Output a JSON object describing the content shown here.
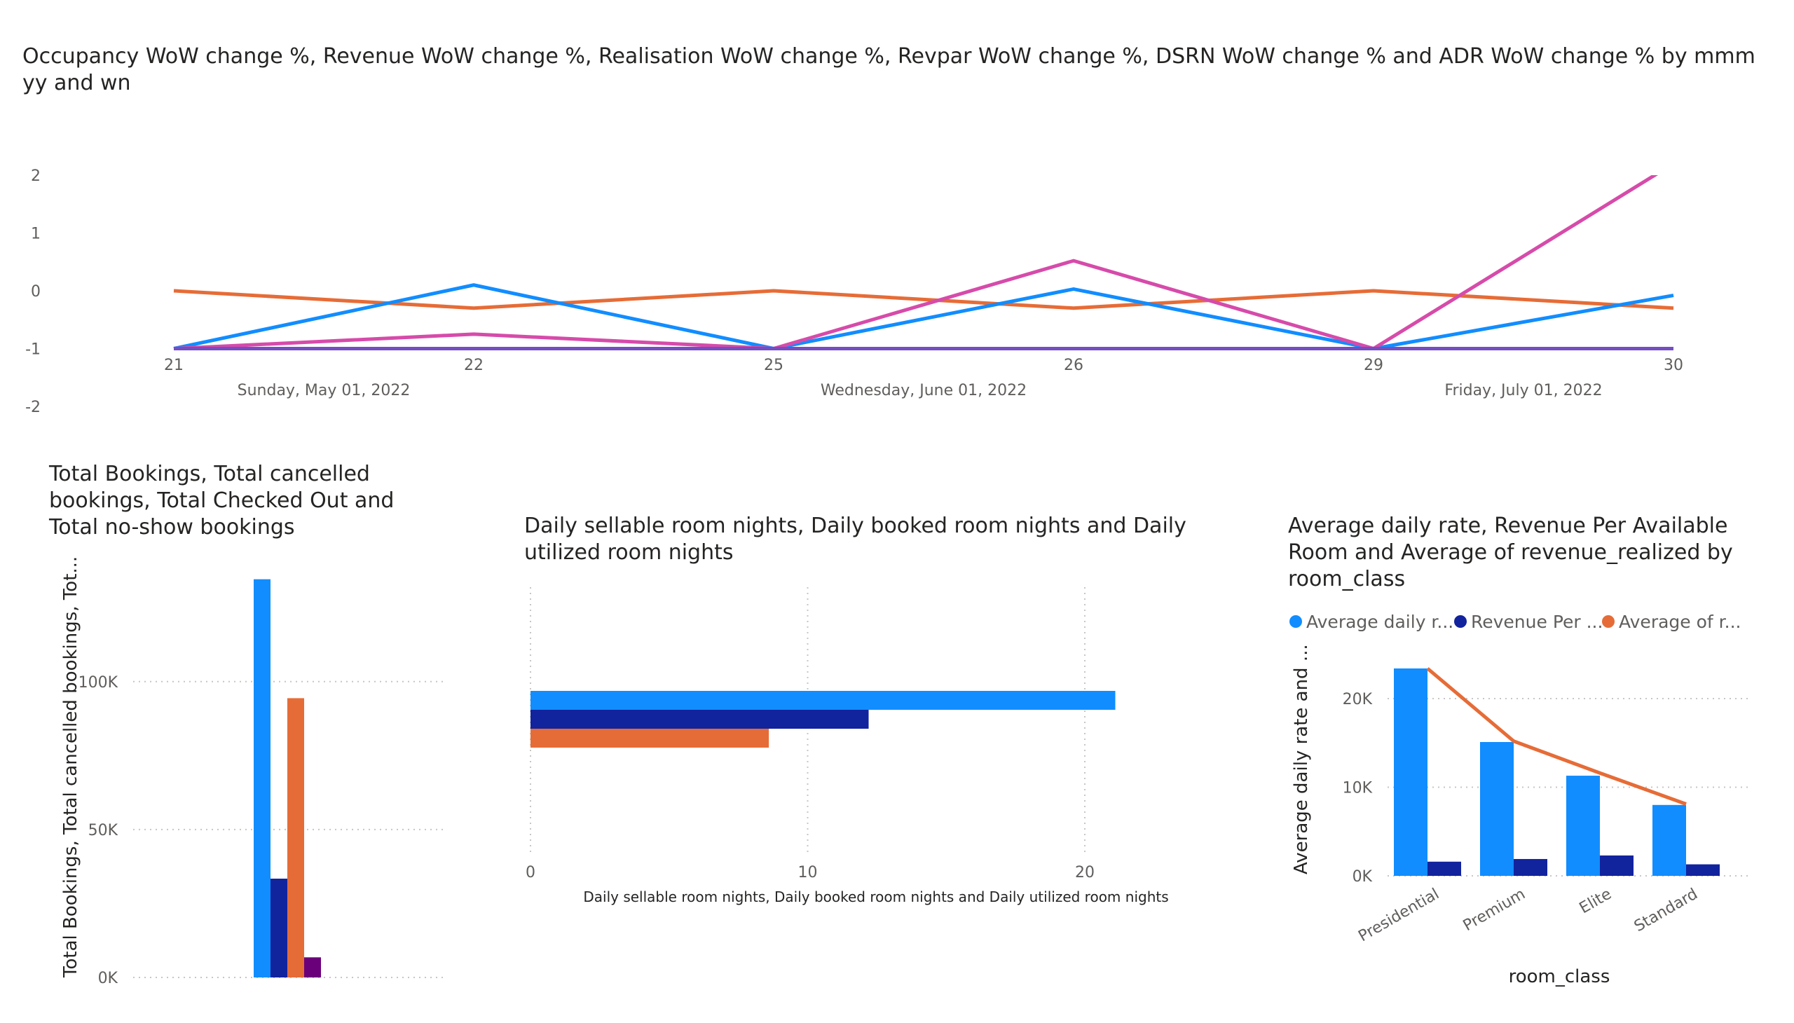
{
  "chart_data": [
    {
      "type": "line",
      "title": "Occupancy WoW change %, Revenue WoW change %, Realisation WoW change %, Revpar WoW change %, DSRN WoW change % and ADR WoW change % by mmm yy and wn",
      "x": [
        "21",
        "22",
        "25",
        "26",
        "29",
        "30"
      ],
      "month_labels": [
        "Sunday, May 01, 2022",
        "Wednesday, June 01, 2022",
        "Friday, July 01, 2022"
      ],
      "yticks": [
        "2",
        "1",
        "0",
        "-1",
        "-2"
      ],
      "ylim": [
        -2,
        2
      ],
      "series": [
        {
          "color": "#E66C37",
          "values": [
            0,
            -0.3,
            0,
            -0.3,
            0,
            -0.3
          ]
        },
        {
          "color": "#118DFF",
          "values": [
            -1,
            0.1,
            -1,
            0.03,
            -1,
            -0.08
          ]
        },
        {
          "color": "#D64BAA",
          "values": [
            -1,
            -0.75,
            -1,
            0.52,
            -1,
            2.2
          ]
        },
        {
          "color": "#744EC2",
          "values": [
            -1,
            -1,
            -1,
            -1,
            -1,
            -1
          ]
        }
      ]
    },
    {
      "type": "bar",
      "title": "Total Bookings, Total cancelled bookings, Total Checked Out and Total no-show bookings",
      "ylabel": "Total Bookings, Total cancelled bookings, Tot...",
      "yticks": [
        "100K",
        "50K",
        "0K"
      ],
      "ytick_values": [
        100000,
        50000,
        0
      ],
      "ylim": [
        0,
        135000
      ],
      "series": [
        {
          "color": "#118DFF",
          "values": [
            134600
          ]
        },
        {
          "color": "#12239E",
          "values": [
            33400
          ]
        },
        {
          "color": "#E66C37",
          "values": [
            94400
          ]
        },
        {
          "color": "#6B007B",
          "values": [
            6800
          ]
        }
      ]
    },
    {
      "type": "bar",
      "orientation": "horizontal",
      "title": "Daily sellable room nights, Daily booked room nights and Daily utilized room nights",
      "xlabel": "Daily sellable room nights, Daily booked room nights and Daily utilized room nights",
      "xticks": [
        "0",
        "10",
        "20"
      ],
      "xtick_values": [
        0,
        10,
        20
      ],
      "xlim": [
        0,
        22
      ],
      "series": [
        {
          "color": "#118DFF",
          "values": [
            21.1
          ]
        },
        {
          "color": "#12239E",
          "values": [
            12.2
          ]
        },
        {
          "color": "#E66C37",
          "values": [
            8.6
          ]
        }
      ]
    },
    {
      "type": "bar",
      "title": "Average daily rate, Revenue Per Available Room and Average of revenue_realized by room_class",
      "xlabel": "room_class",
      "ylabel": "Average daily rate and ...",
      "categories": [
        "Presidential",
        "Premium",
        "Elite",
        "Standard"
      ],
      "legend": [
        "Average daily r...",
        "Revenue Per ...",
        "Average of r..."
      ],
      "yticks": [
        "20K",
        "10K",
        "0K"
      ],
      "ytick_values": [
        20000,
        10000,
        0
      ],
      "ylim": [
        0,
        24000
      ],
      "series": [
        {
          "name": "Average daily r...",
          "type": "bar",
          "color": "#118DFF",
          "values": [
            23400,
            15100,
            11300,
            8000
          ]
        },
        {
          "name": "Revenue Per ...",
          "type": "bar",
          "color": "#12239E",
          "values": [
            1600,
            1900,
            2300,
            1300
          ]
        },
        {
          "name": "Average of r...",
          "type": "line",
          "color": "#E66C37",
          "values": [
            23400,
            15200,
            11600,
            8100
          ]
        }
      ]
    }
  ]
}
